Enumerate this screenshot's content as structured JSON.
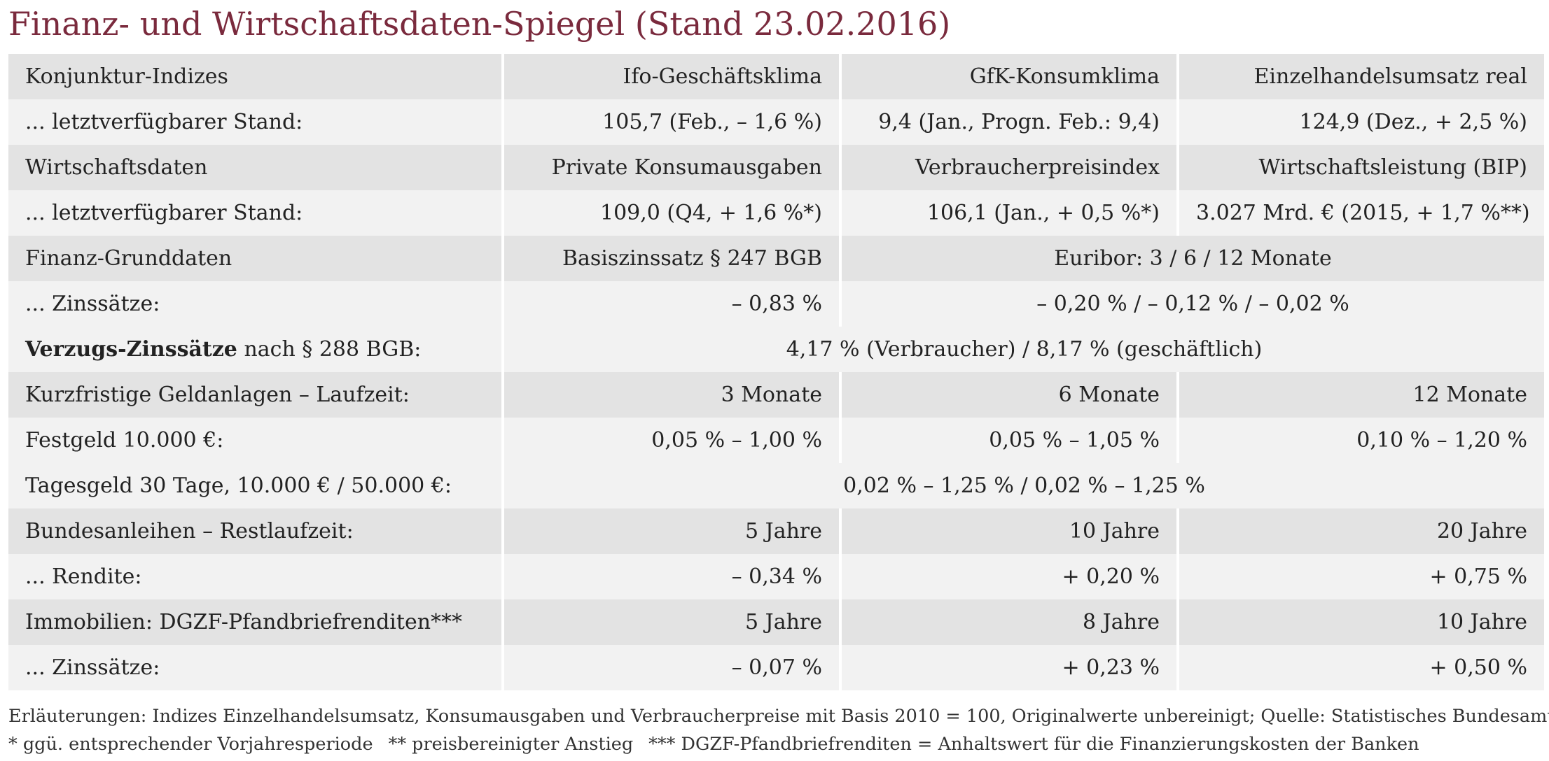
{
  "title": "Finanz- und Wirtschaftsdaten-Spiegel (Stand 23.02.2016)",
  "rows": [
    {
      "type": "head",
      "cells": [
        "Konjunktur-Indizes",
        "Ifo-Geschäftsklima",
        "GfK-Konsumklima",
        "Einzelhandelsumsatz real"
      ]
    },
    {
      "type": "val",
      "cells": [
        "... letztverfügbarer Stand:",
        "105,7 (Feb., – 1,6 %)",
        "9,4 (Jan., Progn. Feb.: 9,4)",
        "124,9 (Dez., + 2,5 %)"
      ]
    },
    {
      "type": "head",
      "cells": [
        "Wirtschaftsdaten",
        "Private Konsumausgaben",
        "Verbraucherpreisindex",
        "Wirtschaftsleistung (BIP)"
      ]
    },
    {
      "type": "val",
      "cells": [
        "... letztverfügbarer Stand:",
        "109,0 (Q4, + 1,6 %*)",
        "106,1 (Jan., + 0,5 %*)",
        "3.027 Mrd. € (2015, + 1,7 %**)"
      ]
    },
    {
      "type": "head",
      "cells": [
        "Finanz-Grunddaten",
        "Basiszinssatz § 247 BGB",
        "Euribor: 3 / 6 / 12 Monate"
      ]
    },
    {
      "type": "val",
      "cells": [
        "... Zinssätze:",
        "– 0,83 %",
        "– 0,20 % / – 0,12 % / – 0,02 %"
      ]
    },
    {
      "type": "val",
      "cells": [
        "Verzugs-Zinssätze",
        "nach § 288 BGB:",
        "4,17 % (Verbraucher) / 8,17 % (geschäftlich)"
      ]
    },
    {
      "type": "head",
      "cells": [
        "Kurzfristige Geldanlagen – Laufzeit:",
        "3 Monate",
        "6 Monate",
        "12 Monate"
      ]
    },
    {
      "type": "val",
      "cells": [
        "Festgeld 10.000 €:",
        "0,05 % – 1,00 %",
        "0,05 % – 1,05 %",
        "0,10 % – 1,20 %"
      ]
    },
    {
      "type": "val",
      "cells": [
        "Tagesgeld 30 Tage, 10.000 € / 50.000 €:",
        "0,02 % – 1,25 % / 0,02 % – 1,25 %"
      ]
    },
    {
      "type": "head",
      "cells": [
        "Bundesanleihen – Restlaufzeit:",
        "5 Jahre",
        "10 Jahre",
        "20 Jahre"
      ]
    },
    {
      "type": "val",
      "cells": [
        "... Rendite:",
        "– 0,34 %",
        "+ 0,20 %",
        "+ 0,75 %"
      ]
    },
    {
      "type": "head",
      "cells": [
        "Immobilien: DGZF-Pfandbriefrenditen***",
        "5 Jahre",
        "8 Jahre",
        "10 Jahre"
      ]
    },
    {
      "type": "val",
      "cells": [
        "... Zinssätze:",
        "– 0,07 %",
        "+ 0,23 %",
        "+ 0,50 %"
      ]
    }
  ],
  "notes": {
    "line1": "Erläuterungen: Indizes Einzelhandelsumsatz, Konsumausgaben und Verbraucherpreise mit Basis 2010 = 100, Originalwerte unbereinigt; Quelle: Statistisches Bundesamt.",
    "fn1": "* ggü. entsprechender Vorjahresperiode",
    "fn2": "** preisbereinigter Anstieg",
    "fn3": "*** DGZF-Pfandbriefrenditen = Anhaltswert für die Finanzierungskosten der Banken"
  }
}
